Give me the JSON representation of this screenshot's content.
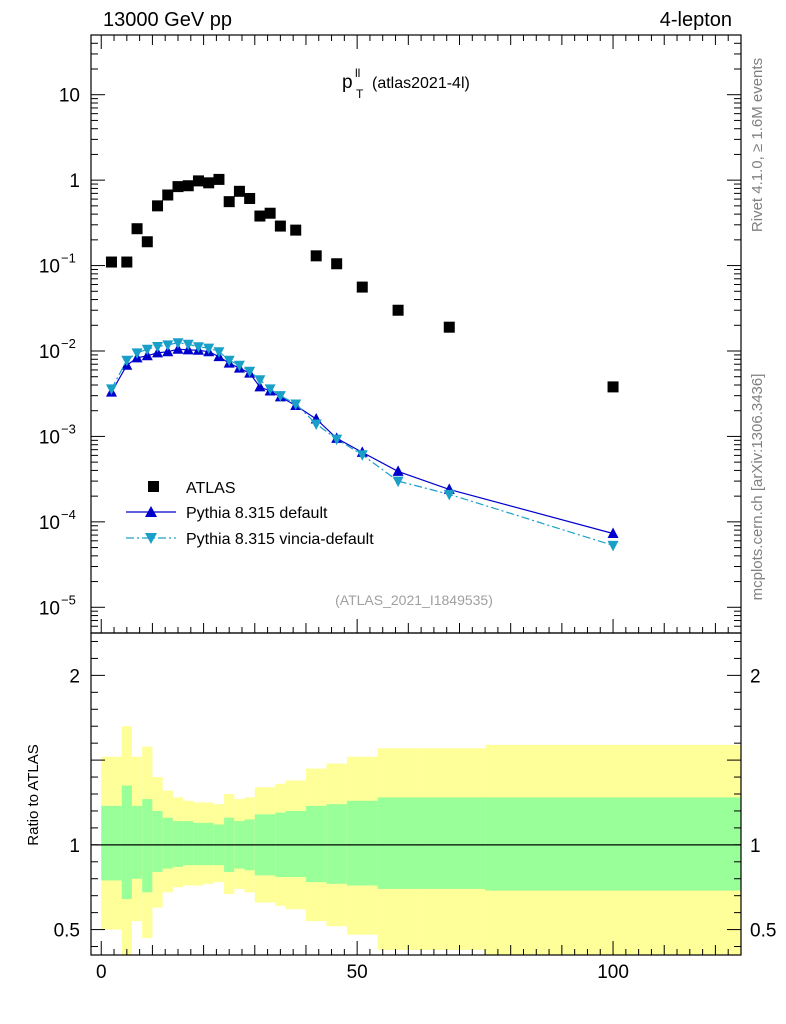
{
  "header": {
    "energy_label": "13000 GeV pp",
    "process_label": "4-lepton"
  },
  "side_labels": {
    "rivet": "Rivet 4.1.0, ≥ 1.6M events",
    "mcplots": "mcplots.cern.ch [arXiv:1306.3436]"
  },
  "colors": {
    "data": "#000000",
    "pythia_default": "#0000cc",
    "pythia_vincia": "#1aa0c8",
    "band_inner": "#99ff99",
    "band_outer": "#ffff99"
  },
  "chart_data": [
    {
      "type": "scatter",
      "title_main": "p",
      "title_sup": "ll",
      "title_sub": "T",
      "title_suffix": "(atlas2021-4l)",
      "analysis_id": "(ATLAS_2021_I1849535)",
      "xlim": [
        -2,
        125
      ],
      "ylim": [
        5e-06,
        50
      ],
      "yscale": "log",
      "y_ticks": [
        {
          "value": 10,
          "label": "10"
        },
        {
          "value": 1,
          "label": "1"
        },
        {
          "value": 0.1,
          "mant": "10",
          "exp": "−1"
        },
        {
          "value": 0.01,
          "mant": "10",
          "exp": "−2"
        },
        {
          "value": 0.001,
          "mant": "10",
          "exp": "−3"
        },
        {
          "value": 0.0001,
          "mant": "10",
          "exp": "−4"
        },
        {
          "value": 1e-05,
          "mant": "10",
          "exp": "−5"
        }
      ],
      "legend": [
        {
          "label": "ATLAS",
          "series": "ATLAS"
        },
        {
          "label": "Pythia 8.315 default",
          "series": "Pythia 8.315 default"
        },
        {
          "label": "Pythia 8.315 vincia-default",
          "series": "Pythia 8.315 vincia-default"
        }
      ],
      "series": [
        {
          "name": "ATLAS",
          "marker": "square",
          "x": [
            2,
            5,
            7,
            9,
            11,
            13,
            15,
            17,
            19,
            21,
            23,
            25,
            27,
            29,
            31,
            33,
            35,
            38,
            42,
            46,
            51,
            58,
            68,
            100
          ],
          "y": [
            0.11,
            0.11,
            0.27,
            0.19,
            0.5,
            0.67,
            0.84,
            0.86,
            0.98,
            0.93,
            1.02,
            0.56,
            0.74,
            0.61,
            0.38,
            0.41,
            0.29,
            0.26,
            0.13,
            0.105,
            0.056,
            0.03,
            0.019,
            0.0038
          ]
        },
        {
          "name": "Pythia 8.315 default",
          "marker": "triangle-up",
          "line": "solid",
          "x": [
            2,
            5,
            7,
            9,
            11,
            13,
            15,
            17,
            19,
            21,
            23,
            25,
            27,
            29,
            31,
            33,
            35,
            38,
            42,
            46,
            51,
            58,
            68,
            100
          ],
          "y": [
            0.0033,
            0.0068,
            0.0083,
            0.0088,
            0.0095,
            0.0098,
            0.0105,
            0.0103,
            0.0102,
            0.0098,
            0.0086,
            0.0072,
            0.0063,
            0.0055,
            0.0038,
            0.0034,
            0.0029,
            0.0023,
            0.0016,
            0.00095,
            0.00065,
            0.00039,
            0.00024,
            7.3e-05
          ]
        },
        {
          "name": "Pythia 8.315 vincia-default",
          "marker": "triangle-down",
          "line": "dashdot",
          "x": [
            2,
            5,
            7,
            9,
            11,
            13,
            15,
            17,
            19,
            21,
            23,
            25,
            27,
            29,
            31,
            33,
            35,
            38,
            42,
            46,
            51,
            58,
            68,
            100
          ],
          "y": [
            0.0036,
            0.0078,
            0.0095,
            0.0105,
            0.0113,
            0.0118,
            0.0125,
            0.012,
            0.0112,
            0.0108,
            0.0098,
            0.0078,
            0.0068,
            0.0058,
            0.0046,
            0.0036,
            0.003,
            0.0024,
            0.0014,
            0.00093,
            0.00061,
            0.0003,
            0.00021,
            5.3e-05
          ]
        }
      ]
    },
    {
      "type": "area",
      "ylabel": "Ratio to ATLAS",
      "xlim": [
        -2,
        125
      ],
      "ylim": [
        0.35,
        2.25
      ],
      "x_ticks": [
        {
          "value": 0,
          "label": "0"
        },
        {
          "value": 50,
          "label": "50"
        },
        {
          "value": 100,
          "label": "100"
        }
      ],
      "y_ticks": [
        {
          "value": 2,
          "label": "2"
        },
        {
          "value": 1,
          "label": "1"
        },
        {
          "value": 0.5,
          "label": "0.5"
        }
      ],
      "bins": [
        {
          "x0": 0,
          "x1": 4,
          "inner": [
            0.79,
            1.23
          ],
          "outer": [
            0.5,
            1.52
          ]
        },
        {
          "x0": 4,
          "x1": 6,
          "inner": [
            0.68,
            1.35
          ],
          "outer": [
            0.35,
            1.7
          ]
        },
        {
          "x0": 6,
          "x1": 8,
          "inner": [
            0.8,
            1.23
          ],
          "outer": [
            0.55,
            1.52
          ]
        },
        {
          "x0": 8,
          "x1": 10,
          "inner": [
            0.72,
            1.27
          ],
          "outer": [
            0.45,
            1.58
          ]
        },
        {
          "x0": 10,
          "x1": 12,
          "inner": [
            0.84,
            1.2
          ],
          "outer": [
            0.63,
            1.4
          ]
        },
        {
          "x0": 12,
          "x1": 14,
          "inner": [
            0.86,
            1.16
          ],
          "outer": [
            0.72,
            1.32
          ]
        },
        {
          "x0": 14,
          "x1": 16,
          "inner": [
            0.87,
            1.14
          ],
          "outer": [
            0.75,
            1.28
          ]
        },
        {
          "x0": 16,
          "x1": 18,
          "inner": [
            0.88,
            1.14
          ],
          "outer": [
            0.76,
            1.26
          ]
        },
        {
          "x0": 18,
          "x1": 20,
          "inner": [
            0.88,
            1.13
          ],
          "outer": [
            0.76,
            1.25
          ]
        },
        {
          "x0": 20,
          "x1": 22,
          "inner": [
            0.88,
            1.13
          ],
          "outer": [
            0.77,
            1.25
          ]
        },
        {
          "x0": 22,
          "x1": 24,
          "inner": [
            0.88,
            1.12
          ],
          "outer": [
            0.78,
            1.24
          ]
        },
        {
          "x0": 24,
          "x1": 26,
          "inner": [
            0.84,
            1.16
          ],
          "outer": [
            0.71,
            1.3
          ]
        },
        {
          "x0": 26,
          "x1": 28,
          "inner": [
            0.86,
            1.14
          ],
          "outer": [
            0.74,
            1.27
          ]
        },
        {
          "x0": 28,
          "x1": 30,
          "inner": [
            0.85,
            1.15
          ],
          "outer": [
            0.72,
            1.28
          ]
        },
        {
          "x0": 30,
          "x1": 32,
          "inner": [
            0.82,
            1.18
          ],
          "outer": [
            0.66,
            1.34
          ]
        },
        {
          "x0": 32,
          "x1": 34,
          "inner": [
            0.82,
            1.18
          ],
          "outer": [
            0.66,
            1.34
          ]
        },
        {
          "x0": 34,
          "x1": 36,
          "inner": [
            0.81,
            1.19
          ],
          "outer": [
            0.64,
            1.36
          ]
        },
        {
          "x0": 36,
          "x1": 40,
          "inner": [
            0.81,
            1.2
          ],
          "outer": [
            0.62,
            1.38
          ]
        },
        {
          "x0": 40,
          "x1": 44,
          "inner": [
            0.78,
            1.23
          ],
          "outer": [
            0.55,
            1.45
          ]
        },
        {
          "x0": 44,
          "x1": 48,
          "inner": [
            0.77,
            1.24
          ],
          "outer": [
            0.52,
            1.48
          ]
        },
        {
          "x0": 48,
          "x1": 54,
          "inner": [
            0.76,
            1.26
          ],
          "outer": [
            0.47,
            1.52
          ]
        },
        {
          "x0": 54,
          "x1": 62,
          "inner": [
            0.74,
            1.28
          ],
          "outer": [
            0.38,
            1.57
          ]
        },
        {
          "x0": 62,
          "x1": 75,
          "inner": [
            0.74,
            1.28
          ],
          "outer": [
            0.38,
            1.57
          ]
        },
        {
          "x0": 75,
          "x1": 125,
          "inner": [
            0.73,
            1.28
          ],
          "outer": [
            0.35,
            1.59
          ]
        }
      ],
      "reference_line": 1
    }
  ]
}
